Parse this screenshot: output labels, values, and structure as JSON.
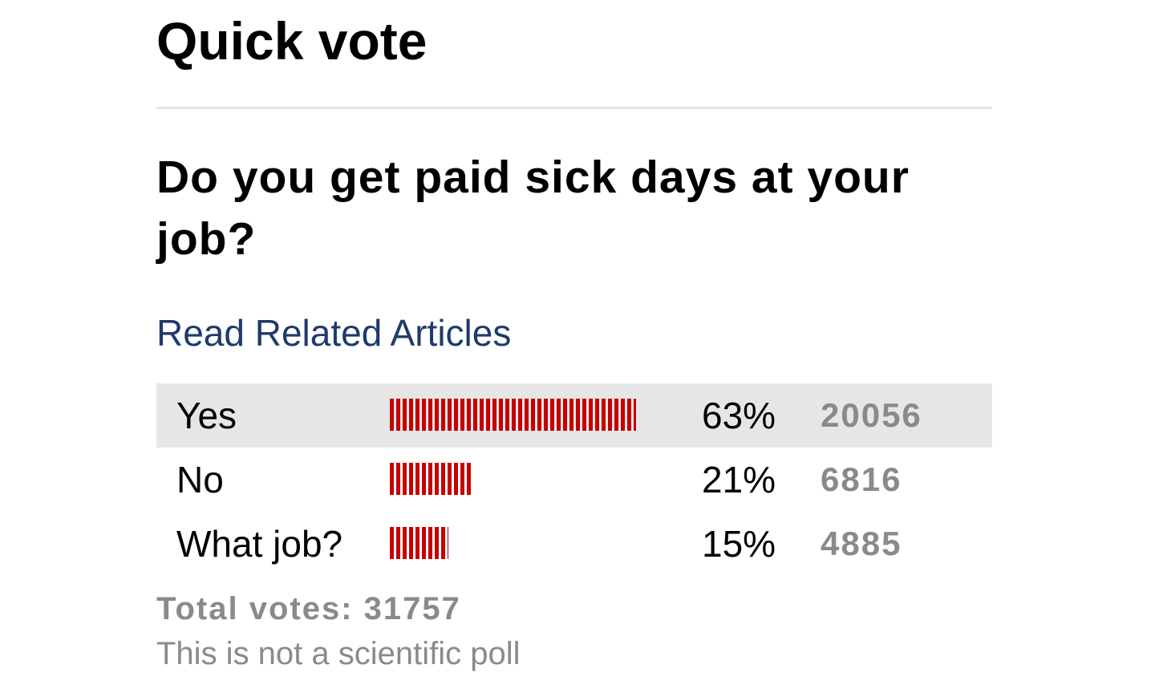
{
  "poll": {
    "title": "Quick vote",
    "question": "Do you get paid sick days at your job?",
    "related_link_label": "Read Related Articles",
    "results": [
      {
        "label": "Yes",
        "percent_label": "63%",
        "votes_label": "20056",
        "share": 0.63,
        "highlighted": true
      },
      {
        "label": "No",
        "percent_label": "21%",
        "votes_label": "6816",
        "share": 0.21,
        "highlighted": false
      },
      {
        "label": "What job?",
        "percent_label": "15%",
        "votes_label": "4885",
        "share": 0.15,
        "highlighted": false
      }
    ],
    "total_votes_label": "Total votes: 31757",
    "disclaimer": "This is not a scientific poll"
  },
  "colors": {
    "bar": "#c40000",
    "link": "#1f3a6c",
    "muted_text": "#8a8a8a",
    "highlight_row": "#e6e6e6"
  }
}
